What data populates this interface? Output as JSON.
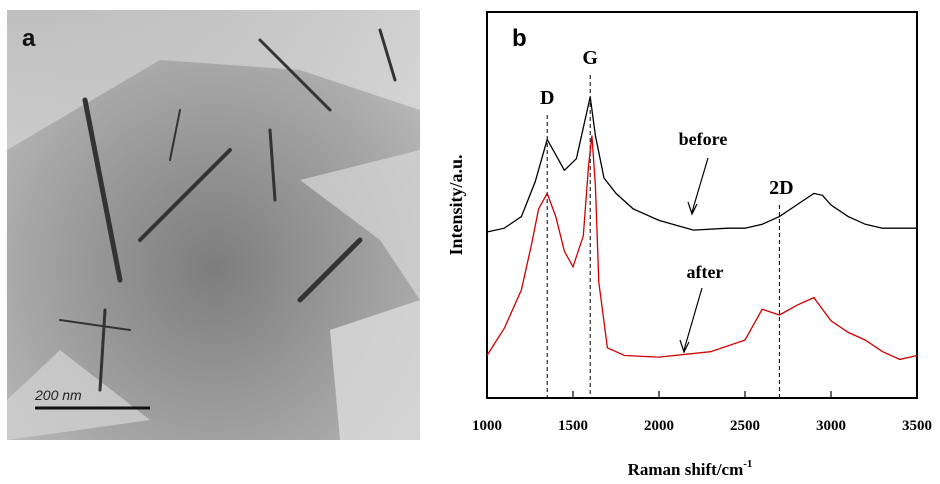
{
  "panel_a": {
    "label": "a",
    "scale_bar": "200 nm"
  },
  "chart_data": {
    "type": "line",
    "panel_label": "b",
    "xlabel": "Raman shift/cm",
    "xlabel_sup": "-1",
    "ylabel": "Intensity/a.u.",
    "xlim": [
      1000,
      3500
    ],
    "xticks": [
      1000,
      1500,
      2000,
      2500,
      3000,
      3500
    ],
    "ylim": [
      0,
      100
    ],
    "peak_lines": [
      {
        "label": "D",
        "x": 1350
      },
      {
        "label": "G",
        "x": 1600
      },
      {
        "label": "2D",
        "x": 2700
      }
    ],
    "series": [
      {
        "name": "before",
        "color": "#000000",
        "x": [
          1000,
          1100,
          1200,
          1280,
          1350,
          1400,
          1450,
          1520,
          1570,
          1600,
          1630,
          1680,
          1750,
          1850,
          2000,
          2200,
          2400,
          2500,
          2600,
          2700,
          2800,
          2900,
          2950,
          3000,
          3100,
          3200,
          3300,
          3400,
          3500
        ],
        "values": [
          43,
          44,
          47,
          56,
          67,
          63,
          59,
          62,
          72,
          78,
          68,
          57,
          53,
          49,
          46,
          43.5,
          44,
          44,
          45,
          47,
          50,
          53,
          52.5,
          50,
          47,
          45,
          44,
          44,
          44
        ]
      },
      {
        "name": "after",
        "color": "#d00000",
        "x": [
          1000,
          1100,
          1200,
          1260,
          1300,
          1350,
          1400,
          1450,
          1500,
          1560,
          1590,
          1610,
          1630,
          1650,
          1700,
          1800,
          2000,
          2300,
          2500,
          2600,
          2700,
          2800,
          2900,
          3000,
          3100,
          3200,
          3300,
          3400,
          3500
        ],
        "values": [
          11,
          18,
          28,
          40,
          49,
          53,
          47,
          38,
          34,
          42,
          60,
          68,
          55,
          30,
          13,
          11,
          10.6,
          12,
          15,
          23,
          21.5,
          24,
          26,
          20,
          17,
          15,
          12,
          10,
          11
        ]
      }
    ]
  }
}
